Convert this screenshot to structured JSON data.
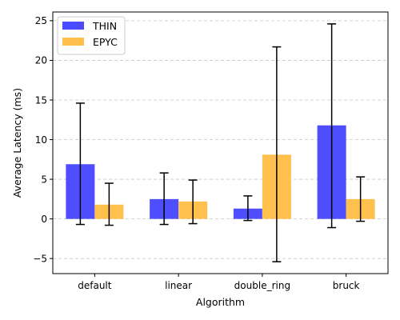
{
  "chart_data": {
    "type": "bar",
    "title": "",
    "xlabel": "Algorithm",
    "ylabel": "Average Latency (ms)",
    "categories": [
      "default",
      "linear",
      "double_ring",
      "bruck"
    ],
    "series": [
      {
        "name": "THIN",
        "color": "#4a4aff",
        "values": [
          6.9,
          2.5,
          1.3,
          11.8
        ],
        "err_low": [
          -0.7,
          -0.7,
          -0.2,
          -1.1
        ],
        "err_high": [
          14.6,
          5.8,
          2.9,
          24.6
        ]
      },
      {
        "name": "EPYC",
        "color": "#ffbf4a",
        "values": [
          1.8,
          2.2,
          8.1,
          2.5
        ],
        "err_low": [
          -0.8,
          -0.6,
          -5.4,
          -0.3
        ],
        "err_high": [
          4.5,
          4.9,
          21.7,
          5.3
        ]
      }
    ],
    "ylim": [
      -6.9,
      26.1
    ],
    "yticks": [
      -5,
      0,
      5,
      10,
      15,
      20,
      25
    ],
    "ytick_labels": [
      "−5",
      "0",
      "5",
      "10",
      "15",
      "20",
      "25"
    ],
    "grid": "y-dashed",
    "legend": "top-left"
  }
}
